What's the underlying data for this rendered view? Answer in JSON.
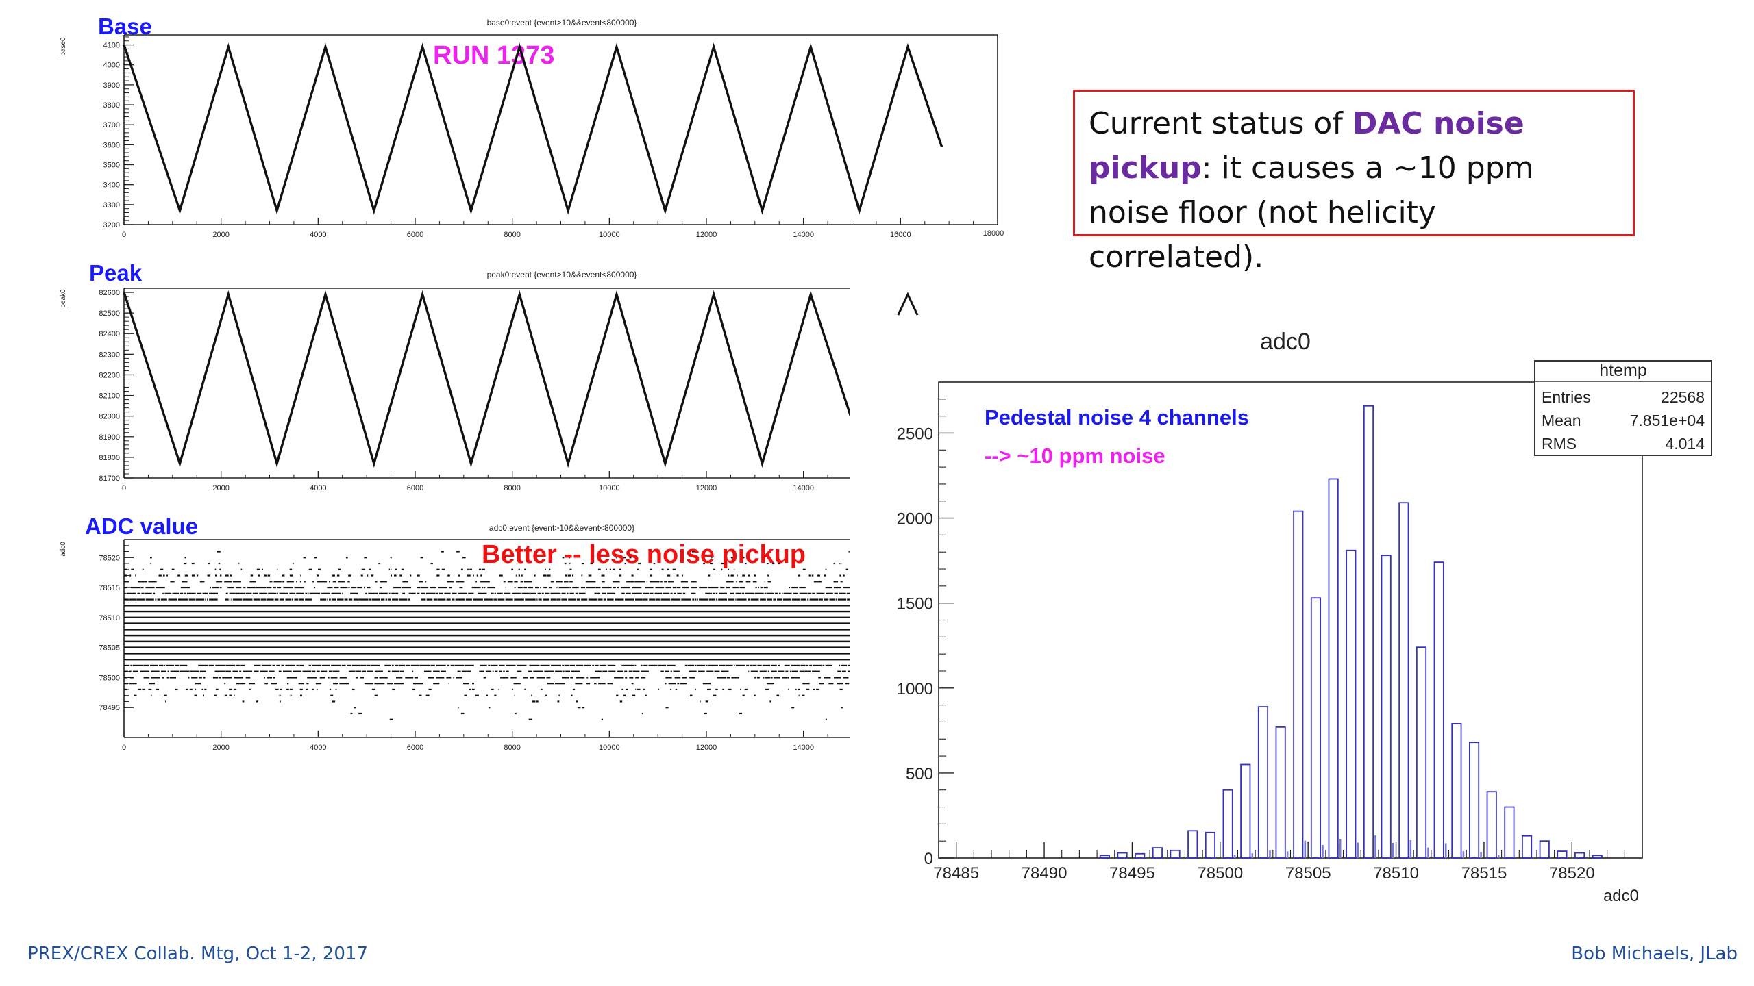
{
  "slide": {
    "callout": {
      "part1": "Current  status  of ",
      "highlight1": "DAC  noise",
      "highlight2": "pickup",
      "part2": ":   it causes  a   ~10 ppm",
      "line3": "noise floor  (not helicity correlated)."
    },
    "footer_left": "PREX/CREX  Collab. Mtg,  Oct 1-2, 2017",
    "footer_right": "Bob Michaels,  JLab"
  },
  "chart_data": [
    {
      "type": "line",
      "label": "Base",
      "title": "base0:event {event>10&&event<800000}",
      "ylabel": "base0",
      "annotation": "RUN 1373",
      "xlim": [
        0,
        18000
      ],
      "ylim": [
        3200,
        4150
      ],
      "xticks": [
        0,
        2000,
        4000,
        6000,
        8000,
        10000,
        12000,
        14000,
        16000
      ],
      "xtick_last": "18000",
      "yticks": [
        3200,
        3300,
        3400,
        3500,
        3600,
        3700,
        3800,
        3900,
        4000,
        4100
      ],
      "x": [
        0,
        1150,
        2150,
        3150,
        4150,
        5150,
        6150,
        7150,
        8150,
        9150,
        10150,
        11150,
        12150,
        13150,
        14150,
        15150,
        16150,
        16850
      ],
      "y": [
        4100,
        3270,
        4090,
        3270,
        4090,
        3270,
        4090,
        3270,
        4090,
        3270,
        4090,
        3270,
        4090,
        3270,
        4090,
        3270,
        4090,
        3590
      ]
    },
    {
      "type": "line",
      "label": "Peak",
      "title": "peak0:event {event>10&&event<800000}",
      "ylabel": "peak0",
      "xlim": [
        0,
        18000
      ],
      "ylim": [
        81700,
        82620
      ],
      "xticks": [
        0,
        2000,
        4000,
        6000,
        8000,
        10000,
        12000,
        14000
      ],
      "yticks": [
        81700,
        81800,
        81900,
        82000,
        82100,
        82200,
        82300,
        82400,
        82500,
        82600
      ],
      "x": [
        0,
        1150,
        2150,
        3150,
        4150,
        5150,
        6150,
        7150,
        8150,
        9150,
        10150,
        11150,
        12150,
        13150,
        14150,
        15000
      ],
      "y": [
        82600,
        81770,
        82590,
        81770,
        82590,
        81770,
        82590,
        81770,
        82590,
        81770,
        82590,
        81770,
        82590,
        81770,
        82590,
        81980
      ]
    },
    {
      "type": "scatter",
      "label": "ADC value",
      "title": "adc0:event {event>10&&event<800000}",
      "ylabel": "adc0",
      "annotation": "Better -- less noise pickup",
      "xlim": [
        0,
        18000
      ],
      "ylim": [
        78490,
        78523
      ],
      "xticks": [
        0,
        2000,
        4000,
        6000,
        8000,
        10000,
        12000,
        14000
      ],
      "yticks": [
        78495,
        78500,
        78505,
        78510,
        78515,
        78520
      ],
      "levels": [
        78493,
        78494,
        78495,
        78496,
        78497,
        78498,
        78499,
        78500,
        78501,
        78502,
        78503,
        78504,
        78505,
        78506,
        78507,
        78508,
        78509,
        78510,
        78511,
        78512,
        78513,
        78514,
        78515,
        78516,
        78517,
        78518,
        78519,
        78520,
        78521
      ],
      "density": [
        0.03,
        0.05,
        0.08,
        0.15,
        0.25,
        0.4,
        0.55,
        0.7,
        0.85,
        0.95,
        1,
        1,
        1,
        1,
        1,
        1,
        1,
        1,
        1,
        1,
        0.95,
        0.9,
        0.8,
        0.65,
        0.5,
        0.35,
        0.22,
        0.12,
        0.06
      ]
    },
    {
      "type": "bar",
      "title": "adc0",
      "xlabel": "adc0",
      "stats": {
        "name": "htemp",
        "Entries": "22568",
        "Mean": "7.851e+04",
        "RMS": "4.014"
      },
      "annotation1": "Pedestal noise 4 channels",
      "annotation2": "-->  ~10  ppm  noise",
      "xlim": [
        78484,
        78524
      ],
      "ylim": [
        0,
        2800
      ],
      "xticks": [
        78485,
        78490,
        78495,
        78500,
        78505,
        78510,
        78515,
        78520
      ],
      "yticks": [
        0,
        500,
        1000,
        1500,
        2000,
        2500
      ],
      "bin_edges": [
        78493,
        78494,
        78495,
        78496,
        78497,
        78498,
        78499,
        78500,
        78501,
        78502,
        78503,
        78504,
        78505,
        78506,
        78507,
        78508,
        78509,
        78510,
        78511,
        78512,
        78513,
        78514,
        78515,
        78516,
        78517,
        78518,
        78519,
        78520,
        78521,
        78522
      ],
      "values": [
        15,
        30,
        25,
        60,
        45,
        160,
        150,
        400,
        550,
        890,
        770,
        2040,
        1530,
        2230,
        1810,
        2660,
        1780,
        2090,
        1240,
        1740,
        790,
        680,
        390,
        300,
        130,
        100,
        40,
        30,
        15
      ]
    }
  ]
}
